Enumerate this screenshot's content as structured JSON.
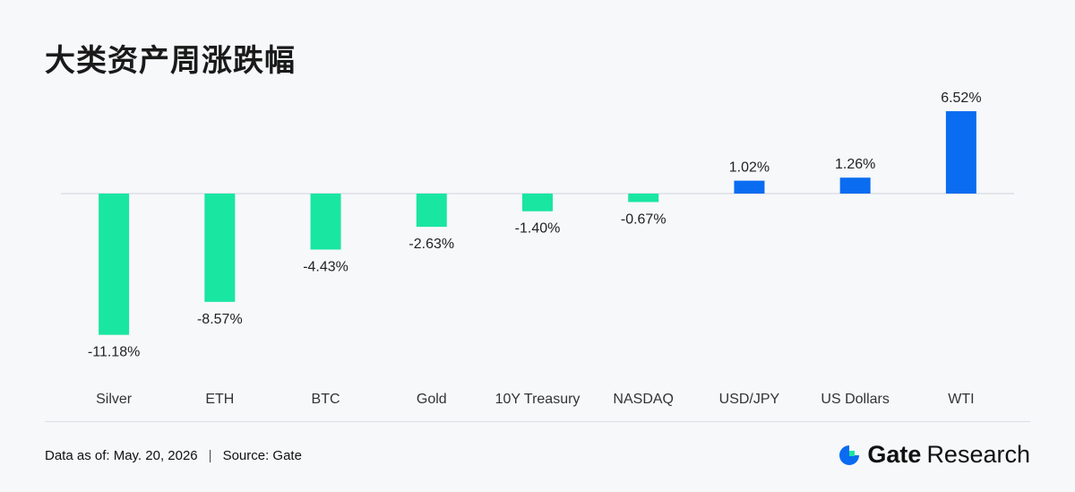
{
  "title": "大类资产周涨跌幅",
  "chart_data": {
    "type": "bar",
    "categories": [
      "Silver",
      "ETH",
      "BTC",
      "Gold",
      "10Y Treasury",
      "NASDAQ",
      "USD/JPY",
      "US Dollars",
      "WTI"
    ],
    "values": [
      -11.18,
      -8.57,
      -4.43,
      -2.63,
      -1.4,
      -0.67,
      1.02,
      1.26,
      6.52
    ],
    "value_labels": [
      "-11.18%",
      "-8.57%",
      "-4.43%",
      "-2.63%",
      "-1.40%",
      "-0.67%",
      "1.02%",
      "1.26%",
      "6.52%"
    ],
    "unit": "%",
    "positive_color": "#0a6cf0",
    "negative_color": "#19e6a1",
    "grid": false
  },
  "footer": {
    "date_label": "Data as of: May. 20, 2026",
    "separator": "|",
    "source_label": "Source:  Gate"
  },
  "logo": {
    "icon": "gate-logo-icon",
    "brand": "Gate",
    "sub": "Research",
    "color": "#0a6cf0"
  }
}
